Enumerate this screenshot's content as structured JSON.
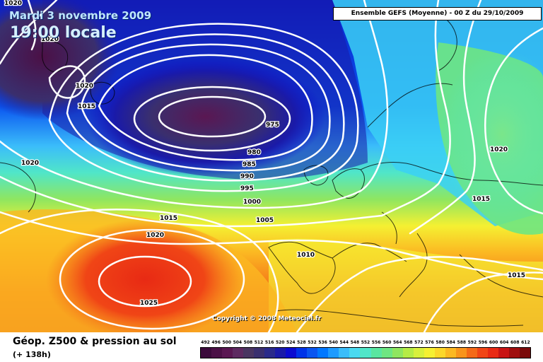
{
  "header": {
    "date": "Mardi 3 novembre 2009",
    "time": "19:00 locale"
  },
  "run_info": "Ensemble GEFS (Moyenne)  -  00 Z du 29/10/2009",
  "copyright": "Copyright © 2008 Meteociel.fr",
  "footer": {
    "title": "Géop. Z500 & pression au sol",
    "range": "(+ 138h)"
  },
  "pressure_labels": [
    {
      "id": "1020-top-left",
      "text": "1020"
    },
    {
      "id": "1020-top-left-2",
      "text": "1020"
    },
    {
      "id": "1020-west",
      "text": "1020"
    },
    {
      "id": "1015-west",
      "text": "1015"
    },
    {
      "id": "1020-atlantic",
      "text": "1020"
    },
    {
      "id": "975-low",
      "text": "975"
    },
    {
      "id": "980",
      "text": "980"
    },
    {
      "id": "985",
      "text": "985"
    },
    {
      "id": "990",
      "text": "990"
    },
    {
      "id": "995",
      "text": "995"
    },
    {
      "id": "1000",
      "text": "1000"
    },
    {
      "id": "1005",
      "text": "1005"
    },
    {
      "id": "1015-south",
      "text": "1015"
    },
    {
      "id": "1020-south",
      "text": "1020"
    },
    {
      "id": "1025-high",
      "text": "1025"
    },
    {
      "id": "1010",
      "text": "1010"
    },
    {
      "id": "1020-east",
      "text": "1020"
    },
    {
      "id": "1015-east",
      "text": "1015"
    },
    {
      "id": "1015-southeast",
      "text": "1015"
    }
  ],
  "legend": {
    "labels": [
      "492",
      "496",
      "500",
      "504",
      "508",
      "512",
      "516",
      "520",
      "524",
      "528",
      "532",
      "536",
      "540",
      "544",
      "548",
      "552",
      "556",
      "560",
      "564",
      "568",
      "572",
      "576",
      "580",
      "584",
      "588",
      "592",
      "596",
      "600",
      "604",
      "608",
      "612"
    ],
    "colors": [
      "#3b0a3b",
      "#4b1046",
      "#5a1752",
      "#5e2a61",
      "#4a3561",
      "#3a2f6e",
      "#2a2a8a",
      "#1a1aa8",
      "#0b0bd0",
      "#0033e8",
      "#0a55f0",
      "#0077ff",
      "#1e9bff",
      "#3bbdfa",
      "#4ad9f0",
      "#50e6c8",
      "#5ae6a0",
      "#6ee682",
      "#8fe660",
      "#b5ec46",
      "#d8f03c",
      "#f5f032",
      "#fbd72a",
      "#fbb822",
      "#f8941c",
      "#f46a18",
      "#f04516",
      "#e82a14",
      "#c81414",
      "#a00e0e",
      "#7a0a0a"
    ]
  }
}
